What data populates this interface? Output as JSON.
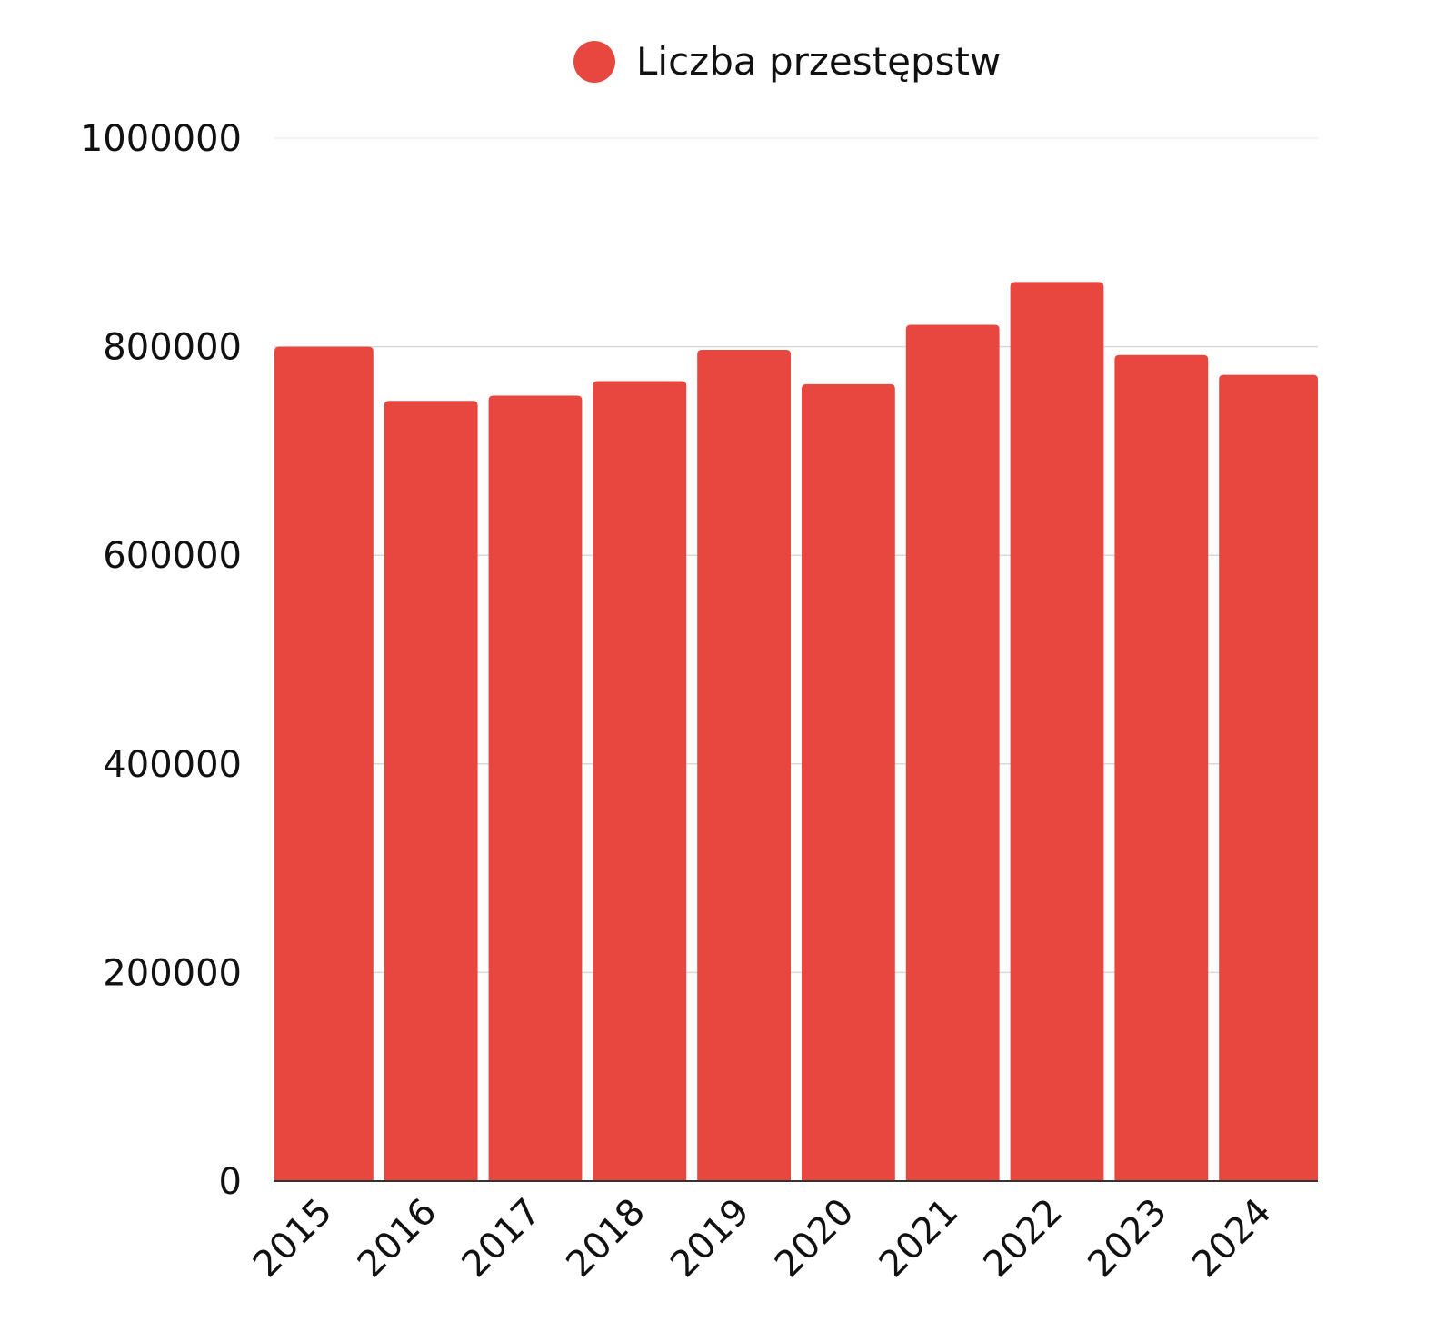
{
  "chart_data": {
    "type": "bar",
    "categories": [
      "2015",
      "2016",
      "2017",
      "2018",
      "2019",
      "2020",
      "2021",
      "2022",
      "2023",
      "2024"
    ],
    "series": [
      {
        "name": "Liczba przestępstw",
        "values": [
          800000,
          748000,
          753000,
          767000,
          797000,
          764000,
          821000,
          862000,
          792000,
          773000
        ],
        "color": "#e8473f"
      }
    ],
    "ylim": [
      0,
      1000000
    ],
    "yticks": [
      "0",
      "200000",
      "400000",
      "600000",
      "800000",
      "1000000"
    ],
    "ytick_values": [
      0,
      200000,
      400000,
      600000,
      800000,
      1000000
    ],
    "grid": true,
    "legend_position": "top-center",
    "title": "",
    "xlabel": "",
    "ylabel": ""
  }
}
